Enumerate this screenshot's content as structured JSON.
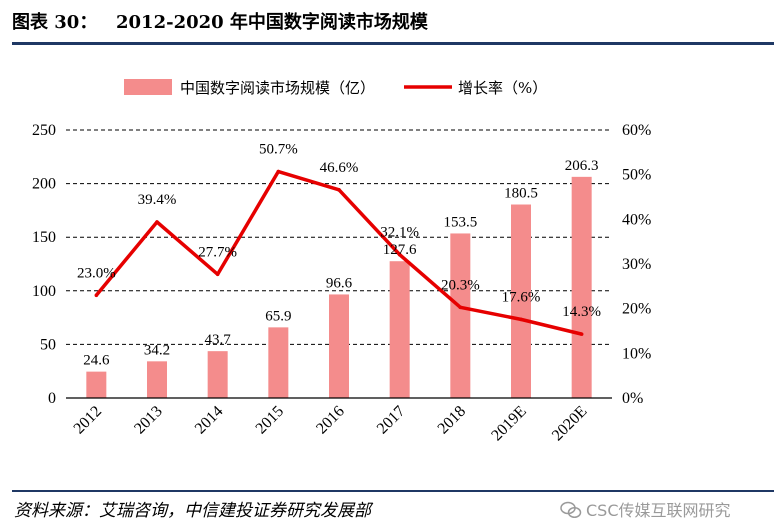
{
  "header": {
    "label": "图表 30：",
    "title": "2012-2020 年中国数字阅读市场规模"
  },
  "footer": {
    "source": "资料来源：艾瑞咨询，中信建投证券研究发展部",
    "watermark": "CSC传媒互联网研究"
  },
  "chart_data": {
    "type": "bar",
    "title": "2012-2020 年中国数字阅读市场规模",
    "categories": [
      "2012",
      "2013",
      "2014",
      "2015",
      "2016",
      "2017",
      "2018",
      "2019E",
      "2020E"
    ],
    "series": [
      {
        "name": "中国数字阅读市场规模（亿）",
        "kind": "bar",
        "axis": "left",
        "color": "#f48c8c",
        "values": [
          24.6,
          34.2,
          43.7,
          65.9,
          96.6,
          127.6,
          153.5,
          180.5,
          206.3
        ],
        "labels": [
          "24.6",
          "34.2",
          "43.7",
          "65.9",
          "96.6",
          "127.6",
          "153.5",
          "180.5",
          "206.3"
        ]
      },
      {
        "name": "增长率（%）",
        "kind": "line",
        "axis": "right",
        "color": "#e60000",
        "values": [
          23.0,
          39.4,
          27.7,
          50.7,
          46.6,
          32.1,
          20.3,
          17.6,
          14.3
        ],
        "labels": [
          "23.0%",
          "39.4%",
          "27.7%",
          "50.7%",
          "46.6%",
          "32.1%",
          "20.3%",
          "17.6%",
          "14.3%"
        ]
      }
    ],
    "y_left": {
      "ylim": [
        0,
        250
      ],
      "ticks": [
        0,
        50,
        100,
        150,
        200,
        250
      ],
      "tick_labels": [
        "0",
        "50",
        "100",
        "150",
        "200",
        "250"
      ]
    },
    "y_right": {
      "ylim": [
        0,
        60
      ],
      "ticks": [
        0,
        10,
        20,
        30,
        40,
        50,
        60
      ],
      "tick_labels": [
        "0%",
        "10%",
        "20%",
        "30%",
        "40%",
        "50%",
        "60%"
      ]
    },
    "grid": "dashed horizontal",
    "legend_position": "top-center"
  }
}
